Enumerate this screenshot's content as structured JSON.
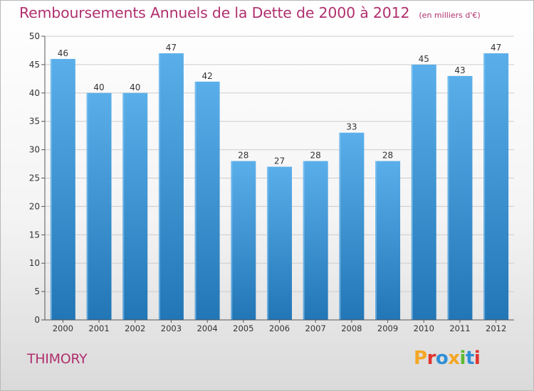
{
  "header": {
    "title": "Remboursements Annuels de la Dette de 2000 à 2012",
    "subtitle": "(en milliers d'€)"
  },
  "footer": {
    "location": "THIMORY",
    "logo_text": "Proxiti",
    "logo_colors": [
      "#f5a623",
      "#e0342e",
      "#2f8fd6",
      "#f5a623",
      "#5fb830",
      "#2f8fd6",
      "#e0342e"
    ]
  },
  "colors": {
    "bar_light": "#5aafea",
    "bar_dark": "#2276b6",
    "title": "#b0306e",
    "grid": "#cccccc",
    "axis": "#555555"
  },
  "chart_data": {
    "type": "bar",
    "title": "Remboursements Annuels de la Dette de 2000 à 2012",
    "subtitle": "(en milliers d'€)",
    "xlabel": "",
    "ylabel": "",
    "categories": [
      "2000",
      "2001",
      "2002",
      "2003",
      "2004",
      "2005",
      "2006",
      "2007",
      "2008",
      "2009",
      "2010",
      "2011",
      "2012"
    ],
    "values": [
      46,
      40,
      40,
      47,
      42,
      28,
      27,
      28,
      33,
      28,
      45,
      43,
      47
    ],
    "ylim": [
      0,
      50
    ],
    "yticks": [
      0,
      5,
      10,
      15,
      20,
      25,
      30,
      35,
      40,
      45,
      50
    ],
    "grid": true
  }
}
